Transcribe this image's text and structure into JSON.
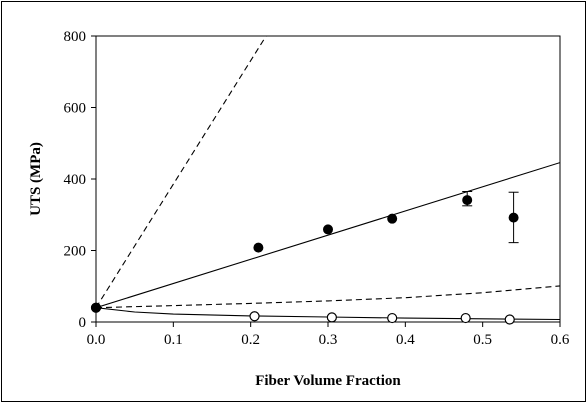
{
  "chart_data": {
    "type": "scatter",
    "title": "",
    "xlabel": "Fiber Volume Fraction",
    "ylabel": "UTS (MPa)",
    "xlim": [
      0,
      0.6
    ],
    "ylim": [
      0,
      800
    ],
    "x_ticks": [
      "0.0",
      "0.1",
      "0.2",
      "0.3",
      "0.4",
      "0.5",
      "0.6"
    ],
    "y_ticks": [
      "0",
      "200",
      "400",
      "600",
      "800"
    ],
    "grid": false,
    "legend": "none",
    "series": [
      {
        "style": "filled-circle",
        "color": "#000000",
        "points": [
          {
            "x": 0.0,
            "y": 40
          },
          {
            "x": 0.21,
            "y": 208
          },
          {
            "x": 0.3,
            "y": 259
          },
          {
            "x": 0.383,
            "y": 289
          },
          {
            "x": 0.48,
            "y": 341
          },
          {
            "x": 0.54,
            "y": 292
          }
        ],
        "error_bars": [
          {
            "x": 0.48,
            "low": 325,
            "high": 365
          },
          {
            "x": 0.54,
            "low": 222,
            "high": 363
          }
        ]
      },
      {
        "style": "open-circle",
        "color": "#000000",
        "points": [
          {
            "x": 0.0,
            "y": 40
          },
          {
            "x": 0.205,
            "y": 16
          },
          {
            "x": 0.305,
            "y": 13
          },
          {
            "x": 0.383,
            "y": 11
          },
          {
            "x": 0.478,
            "y": 11
          },
          {
            "x": 0.535,
            "y": 7
          }
        ]
      },
      {
        "style": "solid-line",
        "color": "#000000",
        "points": [
          {
            "x": 0.0,
            "y": 40
          },
          {
            "x": 0.6,
            "y": 446
          }
        ]
      },
      {
        "style": "dashed-line",
        "color": "#000000",
        "points": [
          {
            "x": 0.0,
            "y": 40
          },
          {
            "x": 0.22,
            "y": 800
          }
        ]
      },
      {
        "style": "dashed-line",
        "color": "#000000",
        "points": [
          {
            "x": 0.0,
            "y": 40
          },
          {
            "x": 0.1,
            "y": 46
          },
          {
            "x": 0.2,
            "y": 52
          },
          {
            "x": 0.3,
            "y": 59
          },
          {
            "x": 0.4,
            "y": 68
          },
          {
            "x": 0.5,
            "y": 82
          },
          {
            "x": 0.6,
            "y": 101
          }
        ]
      },
      {
        "style": "solid-line",
        "color": "#000000",
        "points": [
          {
            "x": 0.0,
            "y": 40
          },
          {
            "x": 0.05,
            "y": 28
          },
          {
            "x": 0.1,
            "y": 22
          },
          {
            "x": 0.2,
            "y": 17
          },
          {
            "x": 0.3,
            "y": 14
          },
          {
            "x": 0.4,
            "y": 11
          },
          {
            "x": 0.5,
            "y": 9
          },
          {
            "x": 0.6,
            "y": 7
          }
        ]
      }
    ]
  }
}
